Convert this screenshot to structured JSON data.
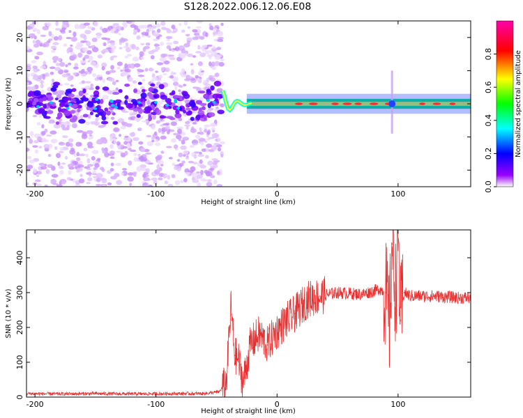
{
  "figure_title": "S128.2022.006.12.06.E08",
  "chart_data": [
    {
      "type": "heatmap",
      "xlabel": "Height of straight line (km)",
      "ylabel": "Frequency (Hz)",
      "xlim": [
        -207,
        160
      ],
      "ylim": [
        -25,
        25
      ],
      "x_ticks": [
        -200,
        -100,
        0,
        100
      ],
      "y_ticks": [
        20,
        10,
        0,
        -10,
        -20
      ],
      "colorbar": {
        "label": "Normalized spectral amplitude",
        "range": [
          0,
          1
        ],
        "ticks": [
          "0.0",
          "0.2",
          "0.4",
          "0.6",
          "0.8"
        ],
        "colors": [
          "#ffffff",
          "#9900ff",
          "#0000ff",
          "#00ffff",
          "#00ff00",
          "#ffff00",
          "#ff0000",
          "#ff00aa"
        ]
      },
      "features": {
        "noise_region_x": [
          -207,
          -45
        ],
        "signal_onset_x": -45,
        "signal_band_hz": [
          -1.5,
          1.5
        ],
        "feature_near_x": 95
      }
    },
    {
      "type": "line",
      "xlabel": "Height of straight line (km)",
      "ylabel": "SNR (10 * v/v)",
      "xlim": [
        -207,
        160
      ],
      "ylim": [
        0,
        480
      ],
      "x_ticks": [
        -200,
        -100,
        0,
        100
      ],
      "y_ticks": [
        0,
        100,
        200,
        300,
        400
      ],
      "series": [
        {
          "color": "#e83030",
          "x": [
            -207,
            -180,
            -150,
            -120,
            -90,
            -60,
            -48,
            -42,
            -38,
            -35,
            -32,
            -28,
            -22,
            -15,
            -8,
            0,
            8,
            15,
            25,
            35,
            50,
            70,
            85,
            90,
            93,
            95,
            98,
            100,
            102,
            105,
            110,
            130,
            150,
            160
          ],
          "y": [
            10,
            9,
            10,
            9,
            10,
            10,
            15,
            40,
            260,
            120,
            110,
            40,
            150,
            180,
            150,
            190,
            220,
            240,
            280,
            290,
            300,
            295,
            310,
            300,
            200,
            440,
            300,
            470,
            220,
            300,
            290,
            290,
            285,
            285
          ]
        }
      ]
    }
  ]
}
